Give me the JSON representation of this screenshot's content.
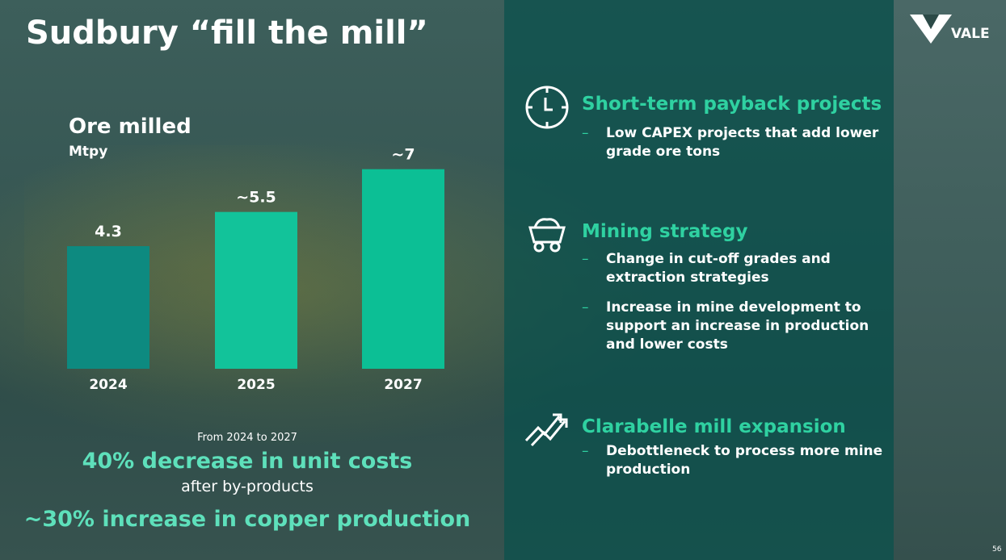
{
  "title": "Sudbury “fill the mill”",
  "logo": {
    "text": "VALE"
  },
  "chart_data": {
    "type": "bar",
    "title": "Ore milled",
    "ylabel": "Mtpy",
    "categories": [
      "2024",
      "2025",
      "2027"
    ],
    "values": [
      4.3,
      5.5,
      7
    ],
    "value_labels": [
      "4.3",
      "~5.5",
      "~7"
    ],
    "colors": [
      "#0d8a80",
      "#12c39a",
      "#0cbf95"
    ],
    "ylim": [
      0,
      7.5
    ],
    "grid": false,
    "legend": "none"
  },
  "summary": {
    "period": "From 2024 to 2027",
    "highlight1": "40% decrease in unit costs",
    "note1": "after by-products",
    "highlight2": "~30% increase in copper production"
  },
  "features": [
    {
      "icon": "clock-icon",
      "heading": "Short-term payback projects",
      "bullets": [
        "Low CAPEX projects that add lower grade ore tons"
      ]
    },
    {
      "icon": "mine-cart-icon",
      "heading": "Mining strategy",
      "bullets": [
        "Change in cut-off grades and extraction strategies",
        "Increase in mine development to support an increase in production and lower costs"
      ]
    },
    {
      "icon": "growth-arrows-icon",
      "heading": "Clarabelle mill expansion",
      "bullets": [
        "Debottleneck to process more mine production"
      ]
    }
  ],
  "page_number": "56",
  "colors": {
    "accent": "#2fd1a1",
    "panel": "#0a5a55",
    "highlight": "#5ee0bb"
  }
}
